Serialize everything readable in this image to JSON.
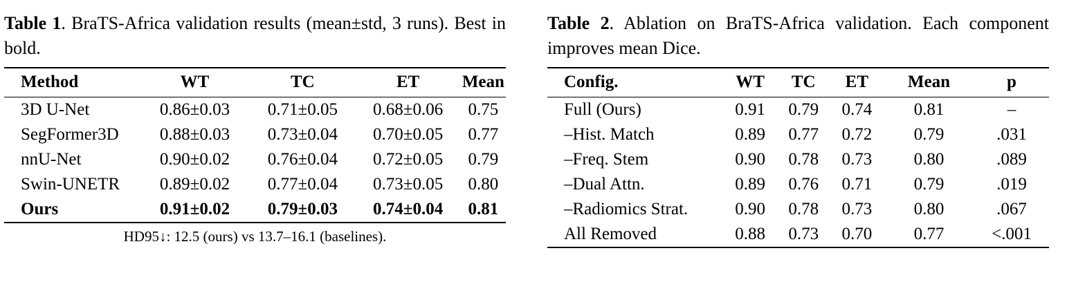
{
  "table1": {
    "caption_label": "Table 1",
    "caption_text": ". BraTS-Africa validation results (mean±std, 3 runs). Best in bold.",
    "headers": [
      "Method",
      "WT",
      "TC",
      "ET",
      "Mean"
    ],
    "rows": [
      {
        "bold": false,
        "cells": [
          "3D U-Net",
          "0.86±0.03",
          "0.71±0.05",
          "0.68±0.06",
          "0.75"
        ]
      },
      {
        "bold": false,
        "cells": [
          "SegFormer3D",
          "0.88±0.03",
          "0.73±0.04",
          "0.70±0.05",
          "0.77"
        ]
      },
      {
        "bold": false,
        "cells": [
          "nnU-Net",
          "0.90±0.02",
          "0.76±0.04",
          "0.72±0.05",
          "0.79"
        ]
      },
      {
        "bold": false,
        "cells": [
          "Swin-UNETR",
          "0.89±0.02",
          "0.77±0.04",
          "0.73±0.05",
          "0.80"
        ]
      },
      {
        "bold": true,
        "cells": [
          "Ours",
          "0.91±0.02",
          "0.79±0.03",
          "0.74±0.04",
          "0.81"
        ]
      }
    ],
    "footnote": "HD95↓: 12.5 (ours) vs 13.7–16.1 (baselines)."
  },
  "table2": {
    "caption_label": "Table 2",
    "caption_text": ". Ablation on BraTS-Africa validation. Each component improves mean Dice.",
    "headers": [
      "Config.",
      "WT",
      "TC",
      "ET",
      "Mean",
      "p"
    ],
    "rows": [
      {
        "bold": false,
        "cells": [
          "Full (Ours)",
          "0.91",
          "0.79",
          "0.74",
          "0.81",
          "–"
        ]
      },
      {
        "bold": false,
        "cells": [
          "–Hist. Match",
          "0.89",
          "0.77",
          "0.72",
          "0.79",
          ".031"
        ]
      },
      {
        "bold": false,
        "cells": [
          "–Freq. Stem",
          "0.90",
          "0.78",
          "0.73",
          "0.80",
          ".089"
        ]
      },
      {
        "bold": false,
        "cells": [
          "–Dual Attn.",
          "0.89",
          "0.76",
          "0.71",
          "0.79",
          ".019"
        ]
      },
      {
        "bold": false,
        "cells": [
          "–Radiomics Strat.",
          "0.90",
          "0.78",
          "0.73",
          "0.80",
          ".067"
        ]
      },
      {
        "bold": false,
        "cells": [
          "All Removed",
          "0.88",
          "0.73",
          "0.70",
          "0.77",
          "<.001"
        ]
      }
    ]
  }
}
